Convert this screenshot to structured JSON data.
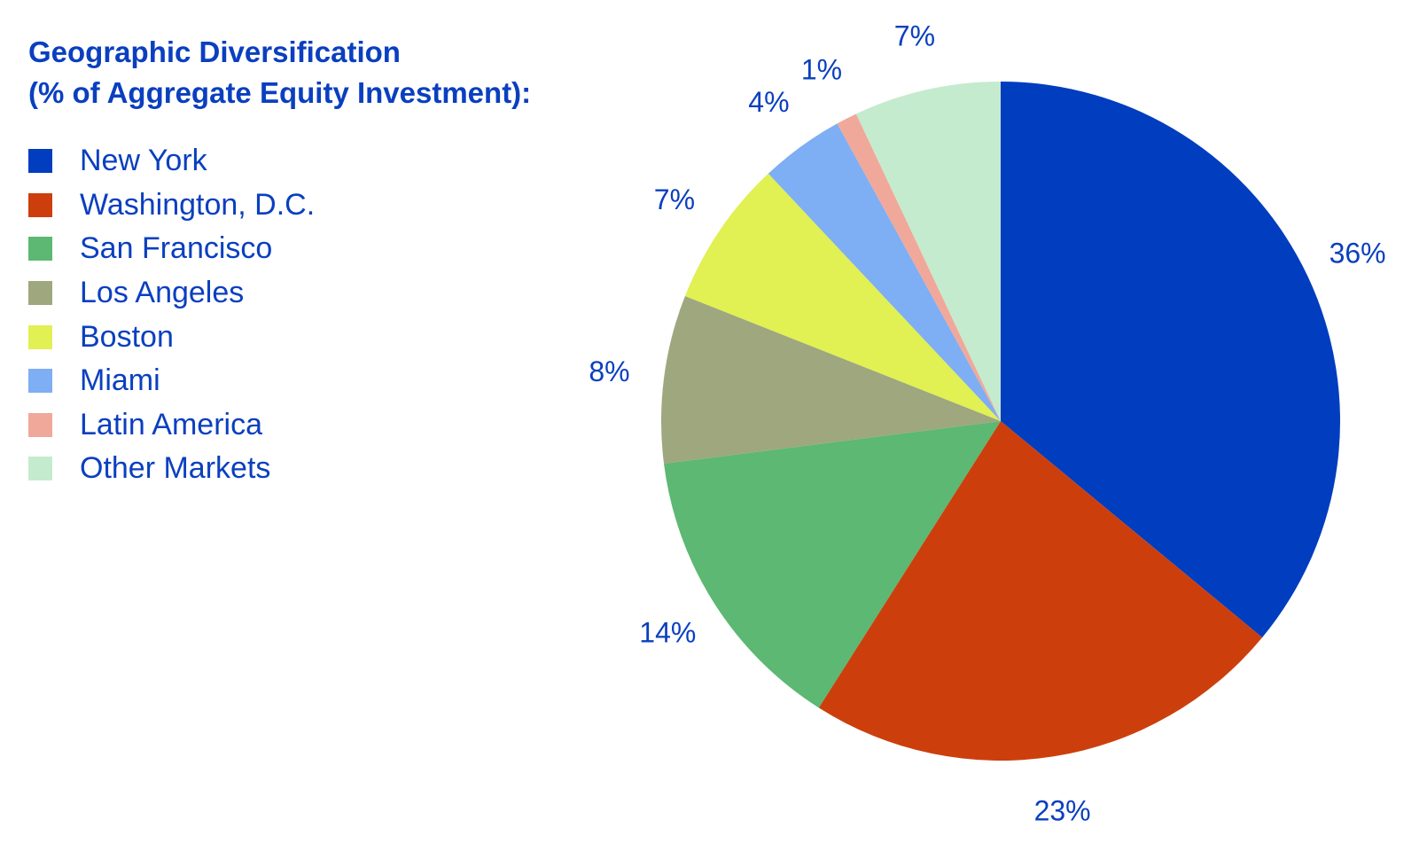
{
  "chart_data": {
    "type": "pie",
    "title_lines": [
      "Geographic Diversification",
      "(% of Aggregate Equity Investment):"
    ],
    "legend_placement": "left",
    "slices": [
      {
        "label": "New York",
        "value": 36,
        "value_label": "36%",
        "color": "#003dbf"
      },
      {
        "label": "Washington, D.C.",
        "value": 23,
        "value_label": "23%",
        "color": "#cc3f0c"
      },
      {
        "label": "San Francisco",
        "value": 14,
        "value_label": "14%",
        "color": "#5cb872"
      },
      {
        "label": "Los Angeles",
        "value": 8,
        "value_label": "8%",
        "color": "#9ea77e"
      },
      {
        "label": "Boston",
        "value": 7,
        "value_label": "7%",
        "color": "#e1f052"
      },
      {
        "label": "Miami",
        "value": 4,
        "value_label": "4%",
        "color": "#7eaef3"
      },
      {
        "label": "Latin America",
        "value": 1,
        "value_label": "1%",
        "color": "#f0a89a"
      },
      {
        "label": "Other Markets",
        "value": 7,
        "value_label": "7%",
        "color": "#c4ebcd"
      }
    ]
  }
}
